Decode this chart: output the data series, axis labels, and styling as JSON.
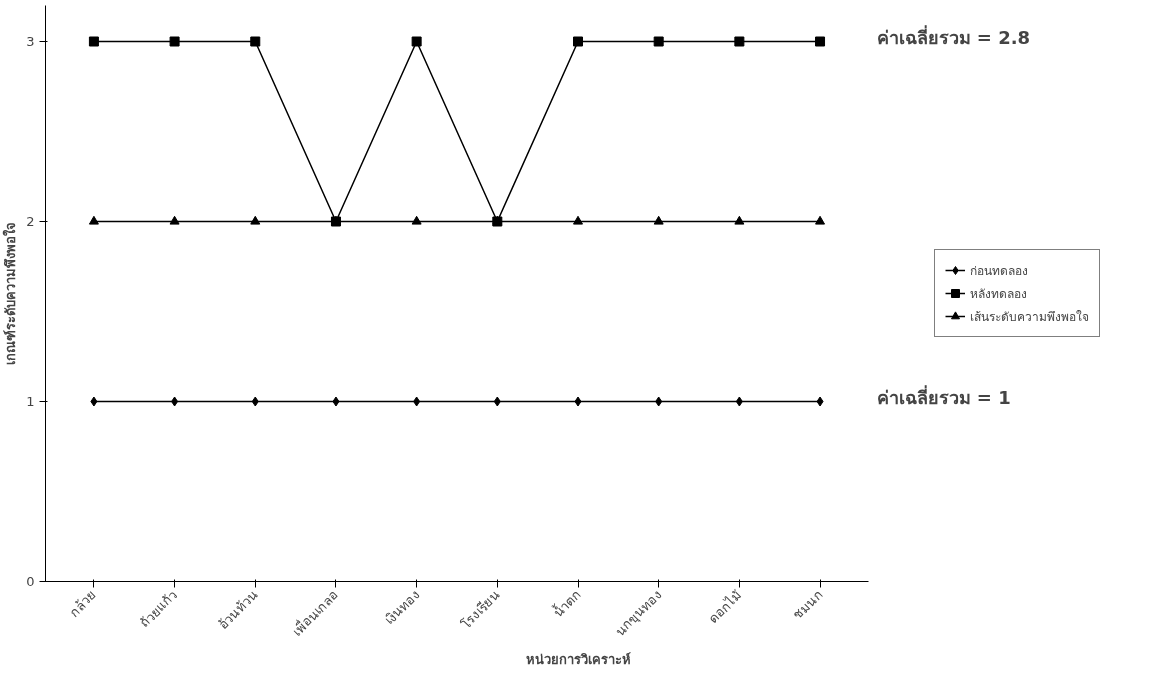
{
  "chart_data": {
    "type": "line",
    "xlabel": "หน่วยการวิเคราะห์",
    "ylabel": "เกณฑ์ระดับความพึงพอใจ",
    "categories": [
      "กล้วย",
      "ถ้วยแก้ว",
      "อ้วนท้วน",
      "เพื่อนเกลอ",
      "เงินทอง",
      "โรงเรียน",
      "น้ำตก",
      "นกขุนทอง",
      "ดอกไม้",
      "ชมนก"
    ],
    "series": [
      {
        "name": "ก่อนทดลอง",
        "color": "#000000",
        "marker": "diamond",
        "values": [
          1,
          1,
          1,
          1,
          1,
          1,
          1,
          1,
          1,
          1
        ]
      },
      {
        "name": "หลังทดลอง",
        "color": "#000000",
        "marker": "square",
        "values": [
          3,
          3,
          3,
          2,
          3,
          2,
          3,
          3,
          3,
          3
        ]
      },
      {
        "name": "เส้นระดับความพึงพอใจ",
        "color": "#000000",
        "marker": "triangle",
        "values": [
          2,
          2,
          2,
          2,
          2,
          2,
          2,
          2,
          2,
          2
        ]
      }
    ],
    "annotations": [
      "ค่าเฉลี่ยรวม = 2.8",
      "ค่าเฉลี่ยรวม = 1"
    ],
    "ylim": [
      0,
      3.2
    ],
    "yticks": [
      0,
      1,
      2,
      3
    ],
    "grid": false,
    "legend": "right",
    "line_style": "solid"
  }
}
